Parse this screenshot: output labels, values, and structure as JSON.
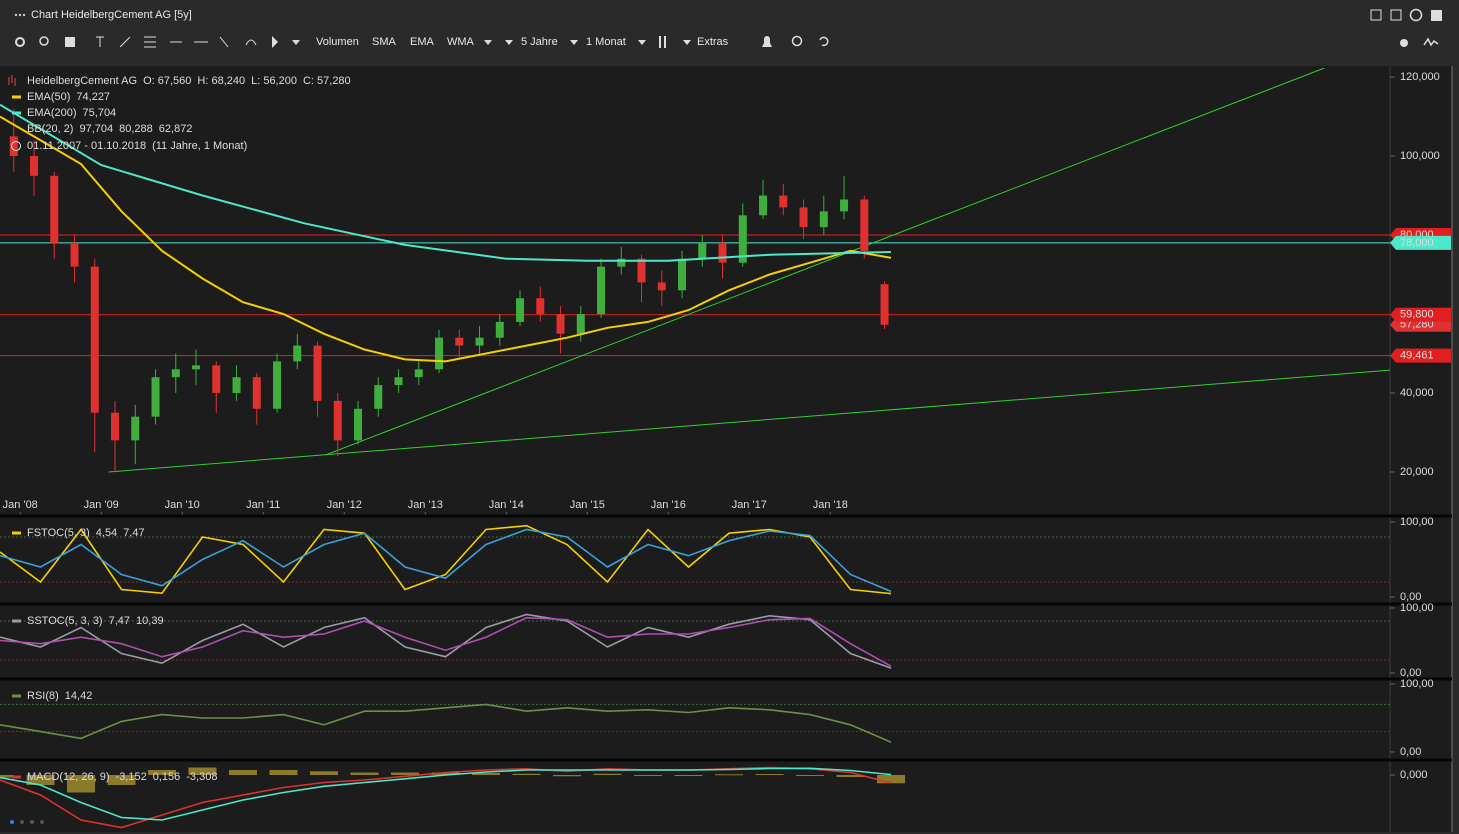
{
  "window": {
    "title": "Chart HeidelbergCement AG [5y]",
    "toolbar": [
      "Volumen",
      "SMA",
      "EMA",
      "WMA",
      "5 Jahre",
      "1 Monat",
      "Extras"
    ]
  },
  "chart_data": [
    {
      "type": "candlestick",
      "legend": {
        "name": "HeidelbergCement AG",
        "ohlc": [
          "O: 67,560",
          "H: 68,240",
          "L: 56,200",
          "C: 57,280"
        ],
        "color": "#e04a4a"
      },
      "bollinger": {
        "name": "BB(20, 2)",
        "labels": [
          "97,704",
          "80,288",
          "62,872"
        ]
      },
      "date_range": "01.11.2007 - 01.10.2018",
      "period": "(11 Jahre, 1 Monat)",
      "up_color": "#3fae3f",
      "down_color": "#e03131",
      "x": [
        2007.92,
        2008.17,
        2008.42,
        2008.67,
        2008.92,
        2009.17,
        2009.42,
        2009.67,
        2009.92,
        2010.17,
        2010.42,
        2010.67,
        2010.92,
        2011.17,
        2011.42,
        2011.67,
        2011.92,
        2012.17,
        2012.42,
        2012.67,
        2012.92,
        2013.17,
        2013.42,
        2013.67,
        2013.92,
        2014.17,
        2014.42,
        2014.67,
        2014.92,
        2015.17,
        2015.42,
        2015.67,
        2015.92,
        2016.17,
        2016.42,
        2016.67,
        2016.92,
        2017.17,
        2017.42,
        2017.67,
        2017.92,
        2018.17,
        2018.42,
        2018.67
      ],
      "open": [
        105,
        100,
        95,
        78,
        72,
        35,
        28,
        34,
        44,
        46,
        47,
        40,
        44,
        36,
        48,
        52,
        38,
        28,
        36,
        42,
        44,
        46,
        54,
        52,
        54,
        58,
        64,
        60,
        55,
        60,
        72,
        74,
        68,
        66,
        74,
        78,
        73,
        85,
        90,
        87,
        82,
        86,
        89,
        67.56
      ],
      "high": [
        112,
        104,
        96,
        80,
        74,
        38,
        37,
        46,
        50,
        51,
        48,
        47,
        45,
        50,
        55,
        53,
        40,
        38,
        44,
        46,
        48,
        56,
        56,
        57,
        60,
        66,
        67,
        62,
        62,
        74,
        77,
        75,
        71,
        76,
        80,
        80,
        88,
        94,
        93,
        89,
        90,
        95,
        90,
        68.24
      ],
      "low": [
        96,
        90,
        74,
        68,
        25,
        20,
        22,
        32,
        40,
        42,
        35,
        38,
        32,
        35,
        46,
        34,
        24,
        27,
        34,
        40,
        42,
        45,
        49,
        50,
        52,
        57,
        58,
        50,
        53,
        59,
        70,
        63,
        62,
        64,
        72,
        69,
        72,
        84,
        85,
        79,
        80,
        84,
        74,
        56.2
      ],
      "close": [
        100,
        95,
        78,
        72,
        35,
        28,
        34,
        44,
        46,
        47,
        40,
        44,
        36,
        48,
        52,
        38,
        28,
        36,
        42,
        44,
        46,
        54,
        52,
        54,
        58,
        64,
        60,
        55,
        60,
        72,
        74,
        68,
        66,
        74,
        78,
        73,
        85,
        90,
        87,
        82,
        86,
        89,
        76,
        57.28
      ],
      "overlays": [
        {
          "name": "EMA(50)",
          "current": "74,227",
          "color": "#f5d000",
          "x": [
            2007.75,
            2008.25,
            2008.75,
            2009.25,
            2009.75,
            2010.25,
            2010.75,
            2011.25,
            2011.75,
            2012.25,
            2012.75,
            2013.25,
            2013.75,
            2014.25,
            2014.75,
            2015.25,
            2015.75,
            2016.25,
            2016.75,
            2017.25,
            2017.75,
            2018.25,
            2018.75
          ],
          "values": [
            110,
            104,
            98,
            86,
            76,
            69,
            63,
            60,
            55,
            51,
            48.5,
            48,
            50,
            52,
            54,
            56.5,
            58,
            61,
            66,
            70,
            73,
            76,
            74.227
          ]
        },
        {
          "name": "EMA(200)",
          "current": "75,704",
          "color": "#4de8c8",
          "x": [
            2007.75,
            2009.0,
            2010.25,
            2011.5,
            2012.75,
            2014.0,
            2015.0,
            2016.0,
            2017.25,
            2018.75
          ],
          "values": [
            113,
            97.7,
            90,
            83,
            77.5,
            74,
            73.5,
            73.5,
            75,
            75.704
          ]
        }
      ],
      "trendlines": [
        {
          "color": "#2fd12f",
          "x": [
            2011.77,
            2024.1
          ],
          "y": [
            24.3,
            122.3
          ]
        },
        {
          "color": "#2fd12f",
          "x": [
            2009.09,
            2024.91
          ],
          "y": [
            20,
            45.8
          ]
        }
      ],
      "last_price": {
        "value": 57.28,
        "label": "57,280",
        "color": "#e03131"
      },
      "hlines": [
        {
          "value": 80,
          "label": "80,000",
          "color": "#e02020"
        },
        {
          "value": 78,
          "label": "78,000",
          "color": "#4de8c8"
        },
        {
          "value": 59.8,
          "label": "59,800",
          "color": "#e02020"
        },
        {
          "value": 49.461,
          "label": "49,461",
          "color": "#e02020"
        }
      ],
      "xlim": [
        2007.75,
        2024.91
      ],
      "xticks": [
        {
          "value": 2008,
          "label": "Jan '08"
        },
        {
          "value": 2009,
          "label": "Jan '09"
        },
        {
          "value": 2010,
          "label": "Jan '10"
        },
        {
          "value": 2011,
          "label": "Jan '11"
        },
        {
          "value": 2012,
          "label": "Jan '12"
        },
        {
          "value": 2013,
          "label": "Jan '13"
        },
        {
          "value": 2014,
          "label": "Jan '14"
        },
        {
          "value": 2015,
          "label": "Jan '15"
        },
        {
          "value": 2016,
          "label": "Jan '16"
        },
        {
          "value": 2017,
          "label": "Jan '17"
        },
        {
          "value": 2018,
          "label": "Jan '18"
        }
      ],
      "ylim": [
        9.1,
        122.3
      ],
      "yticks": [
        {
          "value": 20,
          "label": "20,000"
        },
        {
          "value": 40,
          "label": "40,000"
        },
        {
          "value": 100,
          "label": "100,000"
        },
        {
          "value": 120,
          "label": "120,000"
        }
      ]
    },
    {
      "type": "line",
      "title": "FSTOC(5, 3)",
      "title_color": "#f5d000",
      "x": [
        2007.75,
        2008.25,
        2008.75,
        2009.25,
        2009.75,
        2010.25,
        2010.75,
        2011.25,
        2011.75,
        2012.25,
        2012.75,
        2013.25,
        2013.75,
        2014.25,
        2014.75,
        2015.25,
        2015.75,
        2016.25,
        2016.75,
        2017.25,
        2017.75,
        2018.25,
        2018.75
      ],
      "series": [
        {
          "current": "4,54",
          "color": "#f5d000",
          "values": [
            60,
            20,
            90,
            10,
            5,
            80,
            70,
            20,
            90,
            85,
            10,
            30,
            90,
            95,
            70,
            20,
            90,
            40,
            85,
            90,
            80,
            10,
            4.54
          ]
        },
        {
          "current": "7,47",
          "color": "#3b9fd8",
          "values": [
            55,
            40,
            70,
            30,
            15,
            50,
            75,
            40,
            70,
            85,
            40,
            25,
            70,
            90,
            80,
            40,
            70,
            55,
            75,
            88,
            82,
            30,
            7.47
          ]
        }
      ],
      "levels": [
        {
          "value": 80,
          "color": "#3d6e3d"
        },
        {
          "value": 20,
          "color": "#8a2b2b"
        }
      ],
      "xlim": [
        2007.75,
        2024.91
      ],
      "ylim": [
        -8,
        105.3
      ],
      "yticks": [
        {
          "value": 100,
          "label": "100,00"
        },
        {
          "value": 0,
          "label": "0,00"
        }
      ]
    },
    {
      "type": "line",
      "title": "SSTOC(5, 3, 3)",
      "title_color": "#9a9aaa",
      "x": [
        2007.75,
        2008.25,
        2008.75,
        2009.25,
        2009.75,
        2010.25,
        2010.75,
        2011.25,
        2011.75,
        2012.25,
        2012.75,
        2013.25,
        2013.75,
        2014.25,
        2014.75,
        2015.25,
        2015.75,
        2016.25,
        2016.75,
        2017.25,
        2017.75,
        2018.25,
        2018.75
      ],
      "series": [
        {
          "current": "7,47",
          "color": "#9a9aaa",
          "values": [
            55,
            40,
            70,
            30,
            15,
            50,
            75,
            40,
            70,
            85,
            40,
            25,
            70,
            90,
            80,
            40,
            70,
            55,
            75,
            88,
            82,
            30,
            7.47
          ]
        },
        {
          "current": "10,39",
          "color": "#b04fb0",
          "values": [
            50,
            45,
            55,
            45,
            25,
            40,
            65,
            55,
            60,
            80,
            55,
            35,
            55,
            85,
            82,
            55,
            60,
            60,
            70,
            82,
            84,
            45,
            10.39
          ]
        }
      ],
      "levels": [
        {
          "value": 80,
          "color": "#3d6e3d"
        },
        {
          "value": 20,
          "color": "#8a2b2b"
        }
      ],
      "xlim": [
        2007.75,
        2024.91
      ],
      "ylim": [
        -7.7,
        103
      ],
      "yticks": [
        {
          "value": 100,
          "label": "100,00"
        },
        {
          "value": 0,
          "label": "0,00"
        }
      ]
    },
    {
      "type": "line",
      "title": "RSI(8)",
      "title_color": "#6b8f4a",
      "x": [
        2007.75,
        2008.25,
        2008.75,
        2009.25,
        2009.75,
        2010.25,
        2010.75,
        2011.25,
        2011.75,
        2012.25,
        2012.75,
        2013.25,
        2013.75,
        2014.25,
        2014.75,
        2015.25,
        2015.75,
        2016.25,
        2016.75,
        2017.25,
        2017.75,
        2018.25,
        2018.75
      ],
      "series": [
        {
          "current": "14,42",
          "color": "#6b8f4a",
          "values": [
            40,
            30,
            20,
            45,
            55,
            50,
            50,
            55,
            40,
            60,
            60,
            65,
            70,
            60,
            65,
            60,
            62,
            58,
            65,
            62,
            55,
            40,
            14.42
          ]
        }
      ],
      "levels": [
        {
          "value": 70,
          "color": "#3d6e3d"
        },
        {
          "value": 30,
          "color": "#8a2b2b"
        }
      ],
      "xlim": [
        2007.75,
        2024.91
      ],
      "ylim": [
        -7.4,
        104.4
      ],
      "yticks": [
        {
          "value": 100,
          "label": "100,00"
        },
        {
          "value": 0,
          "label": "0,00"
        }
      ]
    },
    {
      "type": "line",
      "title": "MACD(12, 26, 9)",
      "title_color": "#e03131",
      "x": [
        2007.75,
        2008.25,
        2008.75,
        2009.25,
        2009.75,
        2010.25,
        2010.75,
        2011.25,
        2011.75,
        2012.25,
        2012.75,
        2013.25,
        2013.75,
        2014.25,
        2014.75,
        2015.25,
        2015.75,
        2016.25,
        2016.75,
        2017.25,
        2017.75,
        2018.25,
        2018.75
      ],
      "series": [
        {
          "current": "-3,152",
          "color": "#e03131",
          "values": [
            -2,
            -8,
            -18,
            -21,
            -16,
            -11,
            -8,
            -5,
            -3,
            -2,
            -0.5,
            1,
            2,
            2.5,
            1.5,
            2.5,
            2,
            2,
            2.5,
            3,
            2.5,
            1,
            -3.152
          ]
        },
        {
          "current": "0,156",
          "color": "#4de8c8",
          "values": [
            -1,
            -4,
            -11,
            -17,
            -18,
            -14,
            -10,
            -7,
            -4.5,
            -3,
            -1.5,
            0,
            1.2,
            2,
            2,
            2,
            2,
            2,
            2.2,
            2.6,
            2.7,
            1.8,
            0.156
          ]
        }
      ],
      "histogram": {
        "current": "-3,308",
        "color": "#8a7a2a",
        "values": [
          -1,
          -4,
          -7,
          -4,
          2,
          3,
          2,
          2,
          1.5,
          1,
          1,
          1,
          0.8,
          0.5,
          -0.5,
          0.5,
          0,
          0,
          0.3,
          0.4,
          -0.2,
          -0.8,
          -3.308
        ]
      },
      "xlim": [
        2007.75,
        2024.91
      ],
      "ylim": [
        -22,
        5.2
      ],
      "yticks": [
        {
          "value": 0,
          "label": "0,000"
        }
      ]
    }
  ]
}
